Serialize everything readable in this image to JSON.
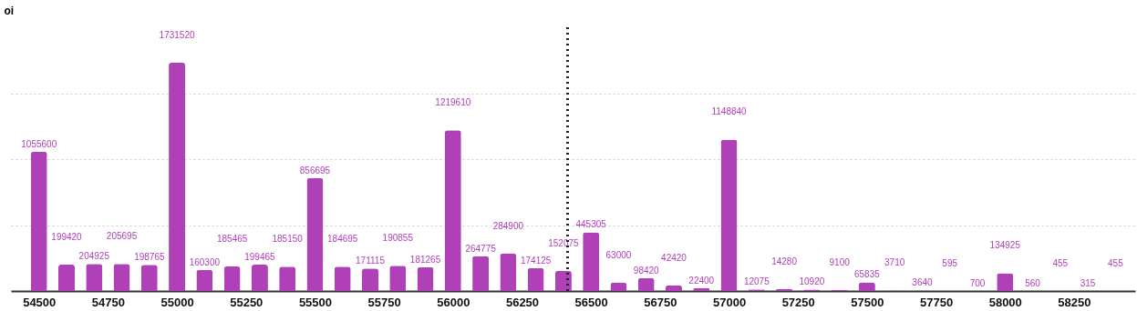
{
  "chart_data": {
    "type": "bar",
    "ylabel": "oi",
    "x": [
      54500,
      54600,
      54700,
      54800,
      54900,
      55000,
      55100,
      55200,
      55300,
      55400,
      55500,
      55600,
      55700,
      55800,
      55900,
      56000,
      56100,
      56200,
      56300,
      56400,
      56500,
      56600,
      56700,
      56800,
      56900,
      57000,
      57100,
      57200,
      57300,
      57400,
      57500,
      57600,
      57700,
      57800,
      57900,
      58000,
      58100,
      58200,
      58300,
      58400
    ],
    "values": [
      1055600,
      199420,
      204925,
      205695,
      198765,
      1731520,
      160300,
      185465,
      199465,
      185150,
      856695,
      184695,
      171115,
      190855,
      181265,
      1219610,
      264775,
      284900,
      174125,
      152075,
      445305,
      63000,
      98420,
      42420,
      22400,
      1148840,
      12075,
      14280,
      10920,
      9100,
      65835,
      3710,
      3640,
      595,
      700,
      134925,
      560,
      455,
      315,
      455
    ],
    "color": "#b040b8",
    "xlim": [
      54415,
      58455
    ],
    "xticks": [
      54500,
      54750,
      55000,
      55250,
      55500,
      55750,
      56000,
      56250,
      56500,
      56750,
      57000,
      57250,
      57500,
      57750,
      58000,
      58250
    ],
    "ylim": [
      0,
      2000000
    ],
    "yticks": [
      {
        "value": 0,
        "label": null
      },
      {
        "value": 500000,
        "label": null
      },
      {
        "value": 1000000,
        "label": null
      },
      {
        "value": 1500000,
        "label": null
      }
    ],
    "tick_labels": "x",
    "grid": "y",
    "data_labels": true,
    "ref_lines": [
      {
        "axis": "x",
        "value": 56414,
        "label": null,
        "line_style": "dotted",
        "color": "#222222"
      }
    ]
  }
}
